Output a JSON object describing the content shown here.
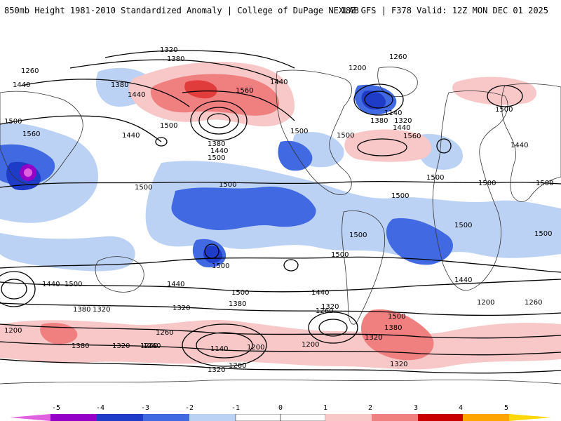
{
  "header": {
    "left_title": "850mb Height 1981-2010 Standardized Anomaly | College of DuPage NEXLAB",
    "right_title": "18Z GFS | F378 Valid: 12Z MON DEC 01 2025"
  },
  "colors": {
    "n5": "#e060e0",
    "n4": "#9400c8",
    "n3": "#1e3cc8",
    "n2": "#4169e1",
    "n1": "#bcd2f5",
    "zero": "#ffffff",
    "p1": "#f8c8c8",
    "p2": "#f08080",
    "p3": "#e03c3c",
    "p4": "#c80000",
    "p5": "#ffa500",
    "contour": "#000000",
    "coast": "#333333"
  },
  "colorbar": {
    "ticks": [
      "-5",
      "-4",
      "-3",
      "-2",
      "-1",
      "0",
      "1",
      "2",
      "3",
      "4",
      "5"
    ]
  },
  "contour_labels": {
    "l1": "1320",
    "l2": "1380",
    "l3": "1260",
    "l4": "1440",
    "l5": "1380",
    "l6": "1440",
    "l7": "1560",
    "l8": "1440",
    "l9": "1200",
    "l10": "1260",
    "l11": "1500",
    "l12": "1560",
    "l13": "1500",
    "l14": "1380",
    "l15": "1440",
    "l16": "1500",
    "l17": "1440",
    "l18": "1500",
    "l19": "1140",
    "l20": "1380",
    "l21": "1320",
    "l22": "1440",
    "l23": "1560",
    "l24": "1500",
    "l25": "1440",
    "l26": "1500",
    "l27": "1500",
    "l28": "1500",
    "l29": "1500",
    "l30": "1500",
    "l31": "1500",
    "l32": "1500",
    "l33": "1500",
    "l34": "1500",
    "l35": "1500",
    "l36": "1500",
    "l37": "1440",
    "l38": "1500",
    "l39": "1380",
    "l40": "1320",
    "l41": "1200",
    "l42": "1440",
    "l43": "1320",
    "l44": "1260",
    "l45": "1500",
    "l46": "1440",
    "l47": "1380",
    "l48": "1320",
    "l49": "1260",
    "l50": "1500",
    "l51": "1380",
    "l52": "1320",
    "l53": "1200",
    "l54": "1260",
    "l55": "1380",
    "l56": "1320",
    "l57": "1260",
    "l58": "1140",
    "l59": "1200",
    "l60": "1260",
    "l61": "1320",
    "l62": "1200",
    "l63": "1440",
    "l64": "1260",
    "l65": "1320",
    "l66": "1500"
  }
}
